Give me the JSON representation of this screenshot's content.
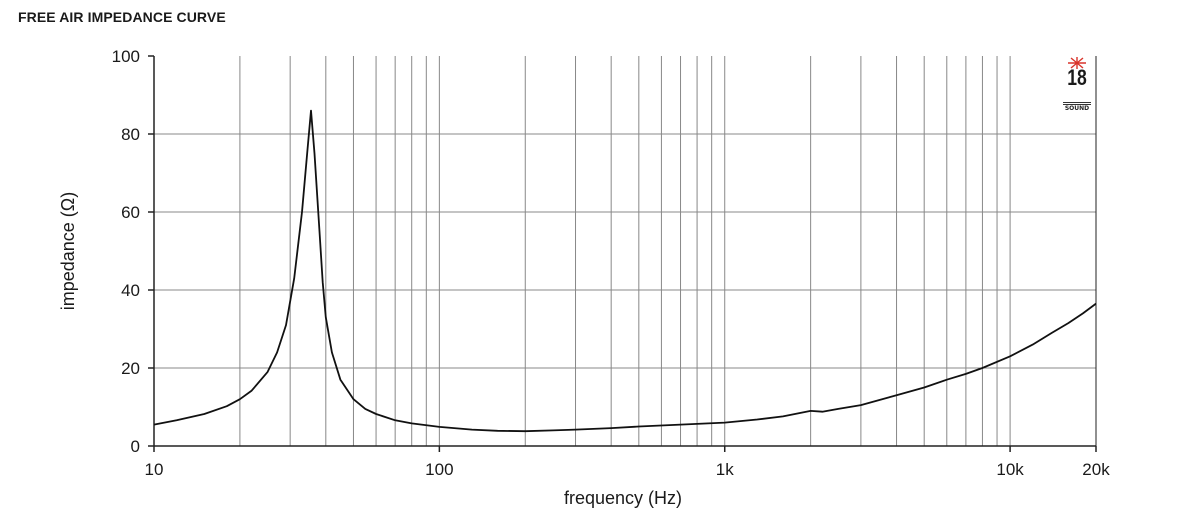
{
  "page_title": "FREE AIR IMPEDANCE CURVE",
  "logo": {
    "number": "18",
    "subtext": "SOUND",
    "star_color": "#d9342b"
  },
  "colors": {
    "curve": "#111111",
    "grid": "#888888",
    "axis": "#222222"
  },
  "chart_data": {
    "type": "line",
    "title": "FREE AIR IMPEDANCE CURVE",
    "xlabel": "frequency (Hz)",
    "ylabel": "impedance (Ω)",
    "x_scale": "log",
    "xlim": [
      10,
      20000
    ],
    "ylim": [
      0,
      100
    ],
    "grid": true,
    "x_ticks": [
      {
        "value": 10,
        "label": "10"
      },
      {
        "value": 100,
        "label": "100"
      },
      {
        "value": 1000,
        "label": "1k"
      },
      {
        "value": 10000,
        "label": "10k"
      },
      {
        "value": 20000,
        "label": "20k"
      }
    ],
    "y_ticks": [
      {
        "value": 0,
        "label": "0"
      },
      {
        "value": 20,
        "label": "20"
      },
      {
        "value": 40,
        "label": "40"
      },
      {
        "value": 60,
        "label": "60"
      },
      {
        "value": 80,
        "label": "80"
      },
      {
        "value": 100,
        "label": "100"
      }
    ],
    "series": [
      {
        "x": [
          10,
          12,
          15,
          18,
          20,
          22,
          25,
          27,
          29,
          31,
          33,
          34.5,
          35.5,
          36.5,
          38,
          39,
          40,
          42,
          45,
          50,
          55,
          60,
          70,
          80,
          100,
          130,
          160,
          200,
          250,
          300,
          400,
          500,
          700,
          1000,
          1300,
          1600,
          2000,
          2200,
          2500,
          3000,
          4000,
          5000,
          6000,
          7000,
          8000,
          10000,
          12000,
          14000,
          16000,
          18000,
          20000
        ],
        "y": [
          5.5,
          6.6,
          8.2,
          10.2,
          12,
          14.2,
          19,
          24,
          31,
          43,
          60,
          76,
          86,
          75,
          55,
          42,
          33,
          24,
          17,
          12,
          9.5,
          8.2,
          6.6,
          5.8,
          4.9,
          4.2,
          3.9,
          3.8,
          4.0,
          4.2,
          4.6,
          5.0,
          5.5,
          6.0,
          6.8,
          7.6,
          9.0,
          8.8,
          9.5,
          10.5,
          13.0,
          15.0,
          17.0,
          18.5,
          20.0,
          23.0,
          26.0,
          29.0,
          31.5,
          34.0,
          36.5
        ]
      }
    ]
  }
}
